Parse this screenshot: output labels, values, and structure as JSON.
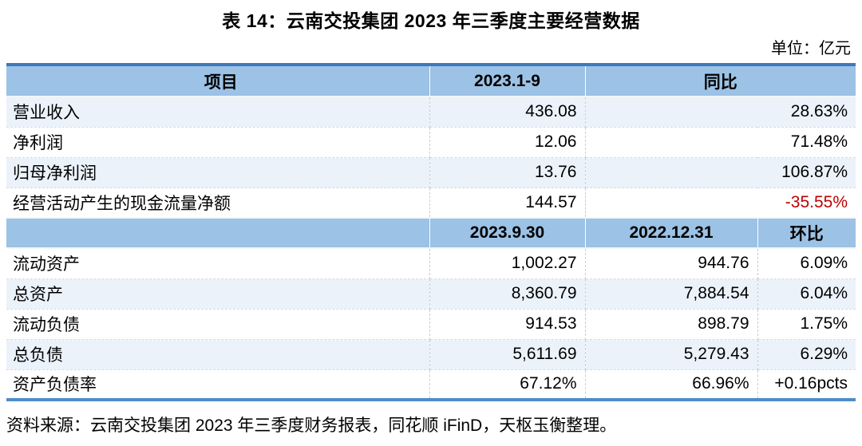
{
  "page": {
    "title": "表 14：云南交投集团 2023 年三季度主要经营数据",
    "unit_label": "单位：亿元",
    "source_note": "资料来源：云南交投集团 2023 年三季度财务报表，同花顺 iFinD，天枢玉衡整理。"
  },
  "colors": {
    "header_bg": "#9CC2E5",
    "row_alt_bg": "#EBF2FA",
    "table_top_border": "#3D7AB8",
    "table_bottom_border": "#4D8CC9",
    "negative_value": "#C00000"
  },
  "table": {
    "section1": {
      "headers": {
        "item": "项目",
        "period": "2023.1-9",
        "yoy": "同比"
      },
      "rows": [
        {
          "item": "营业收入",
          "value": "436.08",
          "yoy": "28.63%"
        },
        {
          "item": "净利润",
          "value": "12.06",
          "yoy": "71.48%"
        },
        {
          "item": "归母净利润",
          "value": "13.76",
          "yoy": "106.87%"
        },
        {
          "item": "经营活动产生的现金流量净额",
          "value": "144.57",
          "yoy": "-35.55%"
        }
      ]
    },
    "section2": {
      "headers": {
        "item": "",
        "current": "2023.9.30",
        "prior": "2022.12.31",
        "qoq": "环比"
      },
      "rows": [
        {
          "item": "流动资产",
          "current": "1,002.27",
          "prior": "944.76",
          "qoq": "6.09%"
        },
        {
          "item": "总资产",
          "current": "8,360.79",
          "prior": "7,884.54",
          "qoq": "6.04%"
        },
        {
          "item": "流动负债",
          "current": "914.53",
          "prior": "898.79",
          "qoq": "1.75%"
        },
        {
          "item": "总负债",
          "current": "5,611.69",
          "prior": "5,279.43",
          "qoq": "6.29%"
        },
        {
          "item": "资产负债率",
          "current": "67.12%",
          "prior": "66.96%",
          "qoq": "+0.16pcts"
        }
      ]
    }
  }
}
